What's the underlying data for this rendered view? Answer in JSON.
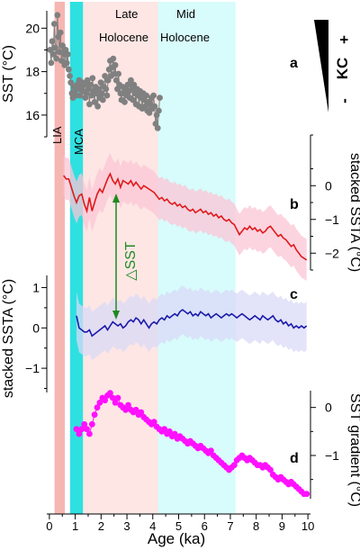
{
  "colors": {
    "pink": "#f6b6b2",
    "light_pink": "#fde6e4",
    "cyan": "#2fe0e0",
    "light_cyan": "#d8fbfb",
    "gray": "#808080",
    "red": "#e0191b",
    "red_band": "#fbc6d6",
    "blue": "#1a1aaa",
    "blue_band": "#d9daf7",
    "magenta": "#ff10ff",
    "green": "#1f8a1f"
  },
  "chart_data": [
    {
      "id": "a",
      "type": "scatter",
      "panel_label": "a",
      "ylabel": "SST (°C)",
      "yticks": [
        16,
        18,
        20
      ],
      "ylim": [
        15.0,
        20.8
      ],
      "x": [
        0.03,
        0.07,
        0.11,
        0.15,
        0.19,
        0.23,
        0.27,
        0.31,
        0.35,
        0.39,
        0.43,
        0.47,
        0.51,
        0.55,
        0.59,
        0.63,
        0.67,
        0.71,
        0.75,
        0.79,
        0.83,
        0.87,
        0.91,
        0.95,
        0.99,
        1.03,
        1.07,
        1.11,
        1.15,
        1.19,
        1.23,
        1.27,
        1.31,
        1.35,
        1.39,
        1.43,
        1.47,
        1.51,
        1.55,
        1.59,
        1.63,
        1.67,
        1.71,
        1.75,
        1.79,
        1.83,
        1.87,
        1.91,
        1.95,
        1.99,
        2.03,
        2.07,
        2.11,
        2.15,
        2.19,
        2.23,
        2.27,
        2.31,
        2.35,
        2.39,
        2.43,
        2.47,
        2.51,
        2.55,
        2.59,
        2.63,
        2.67,
        2.71,
        2.75,
        2.79,
        2.83,
        2.87,
        2.91,
        2.95,
        2.99,
        3.03,
        3.07,
        3.11,
        3.15,
        3.19,
        3.23,
        3.27,
        3.31,
        3.35,
        3.39,
        3.43,
        3.47,
        3.51,
        3.55,
        3.59,
        3.63,
        3.67,
        3.71,
        3.75,
        3.79,
        3.83,
        3.87,
        3.91,
        3.95,
        3.99,
        4.03,
        4.07,
        4.11,
        4.15,
        4.19,
        4.23,
        4.27
      ],
      "y": [
        19.0,
        18.4,
        19.4,
        18.8,
        20.2,
        19.1,
        18.6,
        20.6,
        19.6,
        18.9,
        19.8,
        18.5,
        19.2,
        18.8,
        18.3,
        19.0,
        18.4,
        18.8,
        18.1,
        17.8,
        17.5,
        17.0,
        16.8,
        17.3,
        17.1,
        16.9,
        17.4,
        17.2,
        17.6,
        16.9,
        17.3,
        17.5,
        17.1,
        17.4,
        16.8,
        17.0,
        17.6,
        17.2,
        16.5,
        17.4,
        16.9,
        17.7,
        17.1,
        16.6,
        17.3,
        17.0,
        16.4,
        17.2,
        16.8,
        17.5,
        17.0,
        16.7,
        17.3,
        17.8,
        17.2,
        16.9,
        17.6,
        18.1,
        18.5,
        17.8,
        18.2,
        18.6,
        17.9,
        18.3,
        17.6,
        17.2,
        17.9,
        17.4,
        17.0,
        16.7,
        17.3,
        17.0,
        16.6,
        17.2,
        16.9,
        17.4,
        17.1,
        16.8,
        17.6,
        17.2,
        16.7,
        17.4,
        17.0,
        16.5,
        17.2,
        16.9,
        16.4,
        17.1,
        16.8,
        16.3,
        17.0,
        16.7,
        16.4,
        16.9,
        16.2,
        16.6,
        16.1,
        16.5,
        16.8,
        16.3,
        16.9,
        16.4,
        15.6,
        16.0,
        15.4,
        16.2,
        16.8
      ]
    },
    {
      "id": "b",
      "type": "line",
      "panel_label": "b",
      "ylabel": "stacked SSTA (°C)",
      "yticks": [
        -2,
        -1,
        0
      ],
      "ylim": [
        -2.5,
        1.5
      ],
      "band_halfwidth": 0.62,
      "x": [
        0.55,
        0.65,
        0.75,
        0.85,
        0.95,
        1.05,
        1.15,
        1.25,
        1.35,
        1.45,
        1.55,
        1.65,
        1.75,
        1.85,
        1.95,
        2.05,
        2.15,
        2.25,
        2.35,
        2.45,
        2.55,
        2.65,
        2.75,
        2.85,
        2.95,
        3.05,
        3.15,
        3.25,
        3.35,
        3.45,
        3.55,
        3.65,
        3.75,
        3.85,
        3.95,
        4.05,
        4.15,
        4.25,
        4.35,
        4.45,
        4.55,
        4.65,
        4.75,
        4.85,
        4.95,
        5.05,
        5.15,
        5.25,
        5.35,
        5.45,
        5.55,
        5.65,
        5.75,
        5.85,
        5.95,
        6.05,
        6.15,
        6.25,
        6.35,
        6.45,
        6.55,
        6.65,
        6.75,
        6.85,
        6.95,
        7.05,
        7.15,
        7.25,
        7.35,
        7.45,
        7.55,
        7.65,
        7.75,
        7.85,
        7.95,
        8.05,
        8.15,
        8.25,
        8.35,
        8.45,
        8.55,
        8.65,
        8.75,
        8.85,
        8.95,
        9.05,
        9.15,
        9.25,
        9.35,
        9.45,
        9.55,
        9.65,
        9.75,
        9.85,
        9.95
      ],
      "y": [
        0.3,
        0.2,
        0.2,
        -0.05,
        -0.3,
        -0.5,
        -0.3,
        -0.25,
        -0.55,
        -0.75,
        -0.35,
        -0.75,
        -0.5,
        -0.25,
        -0.1,
        -0.2,
        0.0,
        0.2,
        0.35,
        0.15,
        0.05,
        0.2,
        -0.05,
        0.15,
        0.1,
        0.05,
        0.15,
        0.0,
        0.1,
        0.0,
        -0.1,
        0.0,
        -0.05,
        -0.1,
        -0.15,
        -0.2,
        -0.3,
        -0.4,
        -0.35,
        -0.45,
        -0.4,
        -0.5,
        -0.55,
        -0.5,
        -0.6,
        -0.55,
        -0.65,
        -0.6,
        -0.7,
        -0.75,
        -0.7,
        -0.8,
        -0.75,
        -0.7,
        -0.8,
        -0.75,
        -0.85,
        -0.8,
        -0.9,
        -0.85,
        -0.95,
        -0.9,
        -1.0,
        -1.05,
        -1.0,
        -1.1,
        -1.15,
        -1.3,
        -1.45,
        -1.35,
        -1.25,
        -1.3,
        -1.2,
        -1.3,
        -1.25,
        -1.35,
        -1.3,
        -1.4,
        -1.35,
        -1.25,
        -1.2,
        -1.3,
        -1.4,
        -1.5,
        -1.45,
        -1.55,
        -1.6,
        -1.7,
        -1.8,
        -1.75,
        -1.9,
        -2.0,
        -2.1,
        -2.15,
        -2.2
      ]
    },
    {
      "id": "c",
      "type": "line",
      "panel_label": "c",
      "ylabel": "stacked SSTA (°C)",
      "yticks": [
        -1,
        0,
        1
      ],
      "ylim": [
        -1.6,
        1.3
      ],
      "band_halfwidth": 0.6,
      "x": [
        1.05,
        1.15,
        1.25,
        1.35,
        1.45,
        1.55,
        1.65,
        1.75,
        1.85,
        1.95,
        2.05,
        2.15,
        2.25,
        2.35,
        2.45,
        2.55,
        2.65,
        2.75,
        2.85,
        2.95,
        3.05,
        3.15,
        3.25,
        3.35,
        3.45,
        3.55,
        3.65,
        3.75,
        3.85,
        3.95,
        4.05,
        4.15,
        4.25,
        4.35,
        4.45,
        4.55,
        4.65,
        4.75,
        4.85,
        4.95,
        5.05,
        5.15,
        5.25,
        5.35,
        5.45,
        5.55,
        5.65,
        5.75,
        5.85,
        5.95,
        6.05,
        6.15,
        6.25,
        6.35,
        6.45,
        6.55,
        6.65,
        6.75,
        6.85,
        6.95,
        7.05,
        7.15,
        7.25,
        7.35,
        7.45,
        7.55,
        7.65,
        7.75,
        7.85,
        7.95,
        8.05,
        8.15,
        8.25,
        8.35,
        8.45,
        8.55,
        8.65,
        8.75,
        8.85,
        8.95,
        9.05,
        9.15,
        9.25,
        9.35,
        9.45,
        9.55,
        9.65,
        9.75,
        9.85,
        9.95
      ],
      "y": [
        0.3,
        0.0,
        -0.05,
        -0.1,
        -0.1,
        -0.05,
        -0.2,
        -0.15,
        -0.1,
        -0.05,
        0.0,
        0.05,
        -0.05,
        0.05,
        0.15,
        0.1,
        0.05,
        0.1,
        0.0,
        0.05,
        0.15,
        0.2,
        0.15,
        0.25,
        0.2,
        0.1,
        0.2,
        0.1,
        0.0,
        0.1,
        0.15,
        0.1,
        0.2,
        0.25,
        0.2,
        0.3,
        0.25,
        0.3,
        0.35,
        0.3,
        0.4,
        0.45,
        0.4,
        0.35,
        0.4,
        0.3,
        0.35,
        0.3,
        0.4,
        0.35,
        0.3,
        0.35,
        0.25,
        0.3,
        0.35,
        0.3,
        0.25,
        0.3,
        0.35,
        0.3,
        0.35,
        0.3,
        0.25,
        0.3,
        0.35,
        0.3,
        0.25,
        0.2,
        0.25,
        0.3,
        0.25,
        0.2,
        0.3,
        0.25,
        0.2,
        0.25,
        0.3,
        0.2,
        0.15,
        0.2,
        0.1,
        0.15,
        0.05,
        0.1,
        0.0,
        0.05,
        0.0,
        0.05,
        0.0,
        0.05
      ]
    },
    {
      "id": "d",
      "type": "scatter",
      "panel_label": "d",
      "ylabel": "SST gradient (°C)",
      "yticks": [
        -1,
        0
      ],
      "ylim": [
        -1.9,
        0.35
      ],
      "x": [
        1.05,
        1.15,
        1.25,
        1.35,
        1.45,
        1.55,
        1.65,
        1.75,
        1.85,
        1.95,
        2.05,
        2.15,
        2.25,
        2.35,
        2.45,
        2.55,
        2.65,
        2.75,
        2.85,
        2.95,
        3.05,
        3.15,
        3.25,
        3.35,
        3.45,
        3.55,
        3.65,
        3.75,
        3.85,
        3.95,
        4.05,
        4.15,
        4.25,
        4.35,
        4.45,
        4.55,
        4.65,
        4.75,
        4.85,
        4.95,
        5.05,
        5.15,
        5.25,
        5.35,
        5.45,
        5.55,
        5.65,
        5.75,
        5.85,
        5.95,
        6.05,
        6.15,
        6.25,
        6.35,
        6.45,
        6.55,
        6.65,
        6.75,
        6.85,
        6.95,
        7.05,
        7.15,
        7.25,
        7.35,
        7.45,
        7.55,
        7.65,
        7.75,
        7.85,
        7.95,
        8.05,
        8.15,
        8.25,
        8.35,
        8.45,
        8.55,
        8.65,
        8.75,
        8.85,
        8.95,
        9.05,
        9.15,
        9.25,
        9.35,
        9.45,
        9.55,
        9.65,
        9.75,
        9.85,
        9.95
      ],
      "y": [
        -0.45,
        -0.55,
        -0.45,
        -0.35,
        -0.45,
        -0.55,
        -0.35,
        -0.15,
        0.0,
        0.1,
        0.2,
        0.15,
        0.25,
        0.3,
        0.2,
        0.1,
        0.2,
        0.05,
        0.0,
        -0.05,
        0.05,
        -0.05,
        -0.1,
        -0.05,
        -0.15,
        -0.1,
        -0.2,
        -0.25,
        -0.3,
        -0.35,
        -0.3,
        -0.4,
        -0.45,
        -0.5,
        -0.45,
        -0.55,
        -0.5,
        -0.6,
        -0.55,
        -0.65,
        -0.6,
        -0.65,
        -0.7,
        -0.75,
        -0.7,
        -0.75,
        -0.8,
        -0.85,
        -0.8,
        -0.85,
        -0.9,
        -0.95,
        -0.9,
        -1.0,
        -1.05,
        -1.1,
        -1.15,
        -1.2,
        -1.25,
        -1.3,
        -1.25,
        -1.2,
        -1.1,
        -1.05,
        -1.0,
        -1.05,
        -1.1,
        -1.05,
        -1.1,
        -1.15,
        -1.2,
        -1.2,
        -1.25,
        -1.2,
        -1.25,
        -1.3,
        -1.4,
        -1.45,
        -1.5,
        -1.45,
        -1.5,
        -1.55,
        -1.6,
        -1.55,
        -1.6,
        -1.65,
        -1.7,
        -1.75,
        -1.8,
        -1.8
      ]
    }
  ],
  "xaxis": {
    "label": "Age (ka)",
    "ticks": [
      "0",
      "1",
      "2",
      "3",
      "4",
      "5",
      "6",
      "7",
      "8",
      "9",
      "10"
    ],
    "xlim": [
      -0.1,
      10.1
    ]
  },
  "periods": [
    {
      "label": "LIA",
      "from": 0.2,
      "to": 0.6,
      "color_key": "pink"
    },
    {
      "label": "MCA",
      "from": 0.8,
      "to": 1.3,
      "color_key": "cyan"
    },
    {
      "label_lines": [
        "Late",
        "Holocene"
      ],
      "from": 1.3,
      "to": 4.2,
      "color_key": "light_pink"
    },
    {
      "label_lines": [
        "Mid",
        "Holocene"
      ],
      "from": 4.2,
      "to": 7.2,
      "color_key": "light_cyan"
    }
  ],
  "annotations": {
    "delta_sst": "△SST",
    "kc_minus": "-",
    "kc_text": "KC",
    "kc_plus": "+"
  }
}
